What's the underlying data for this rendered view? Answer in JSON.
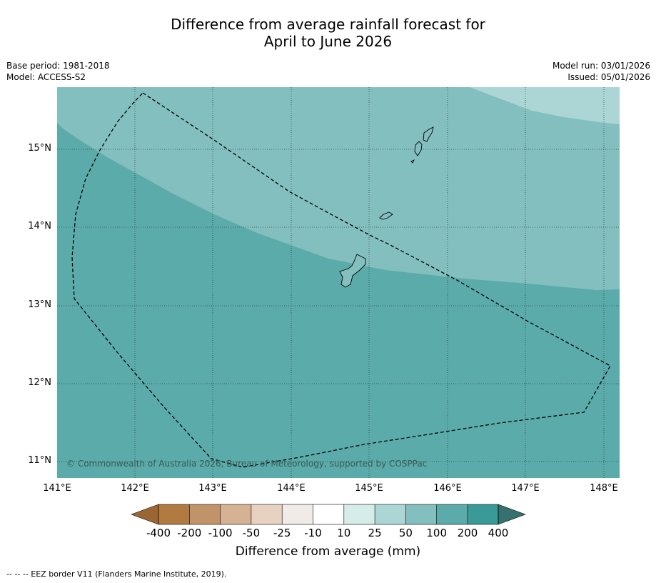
{
  "title_line1": "Difference from average rainfall forecast for",
  "title_line2": "April to June 2026",
  "meta": {
    "base_period": "Base period: 1981-2018",
    "model": "Model: ACCESS-S2",
    "model_run": "Model run: 03/01/2026",
    "issued": "Issued: 05/01/2026"
  },
  "axes": {
    "x_ticks": [
      "141°E",
      "142°E",
      "143°E",
      "144°E",
      "145°E",
      "146°E",
      "147°E",
      "148°E"
    ],
    "y_ticks": [
      "15°N",
      "14°N",
      "13°N",
      "12°N",
      "11°N"
    ]
  },
  "copyright": "© Commonwealth of Australia 2026, Bureau of Meteorology, supported by COSPPac",
  "colorbar": {
    "labels": [
      "-400",
      "-200",
      "-100",
      "-50",
      "-25",
      "-10",
      "10",
      "25",
      "50",
      "100",
      "200",
      "400"
    ],
    "colors": [
      "#9b6632",
      "#b07a40",
      "#c19368",
      "#d5b294",
      "#e7d2c1",
      "#f0ebe7",
      "#ffffff",
      "#d6ece9",
      "#acd6d5",
      "#83bfbe",
      "#5aabaa",
      "#399a97",
      "#35726f"
    ],
    "title": "Difference from average (mm)"
  },
  "footnote": "--  --  -- EEZ border V11 (Flanders Marine Institute, 2019).",
  "map_data": {
    "extent_lon": [
      141.0,
      148.2
    ],
    "extent_lat": [
      10.8,
      15.8
    ],
    "categories_shown": [
      "50",
      "100",
      "200"
    ],
    "colors": {
      "zone_50": "#acd6d5",
      "zone_100": "#83bfbe",
      "zone_200": "#5aabaa"
    }
  }
}
